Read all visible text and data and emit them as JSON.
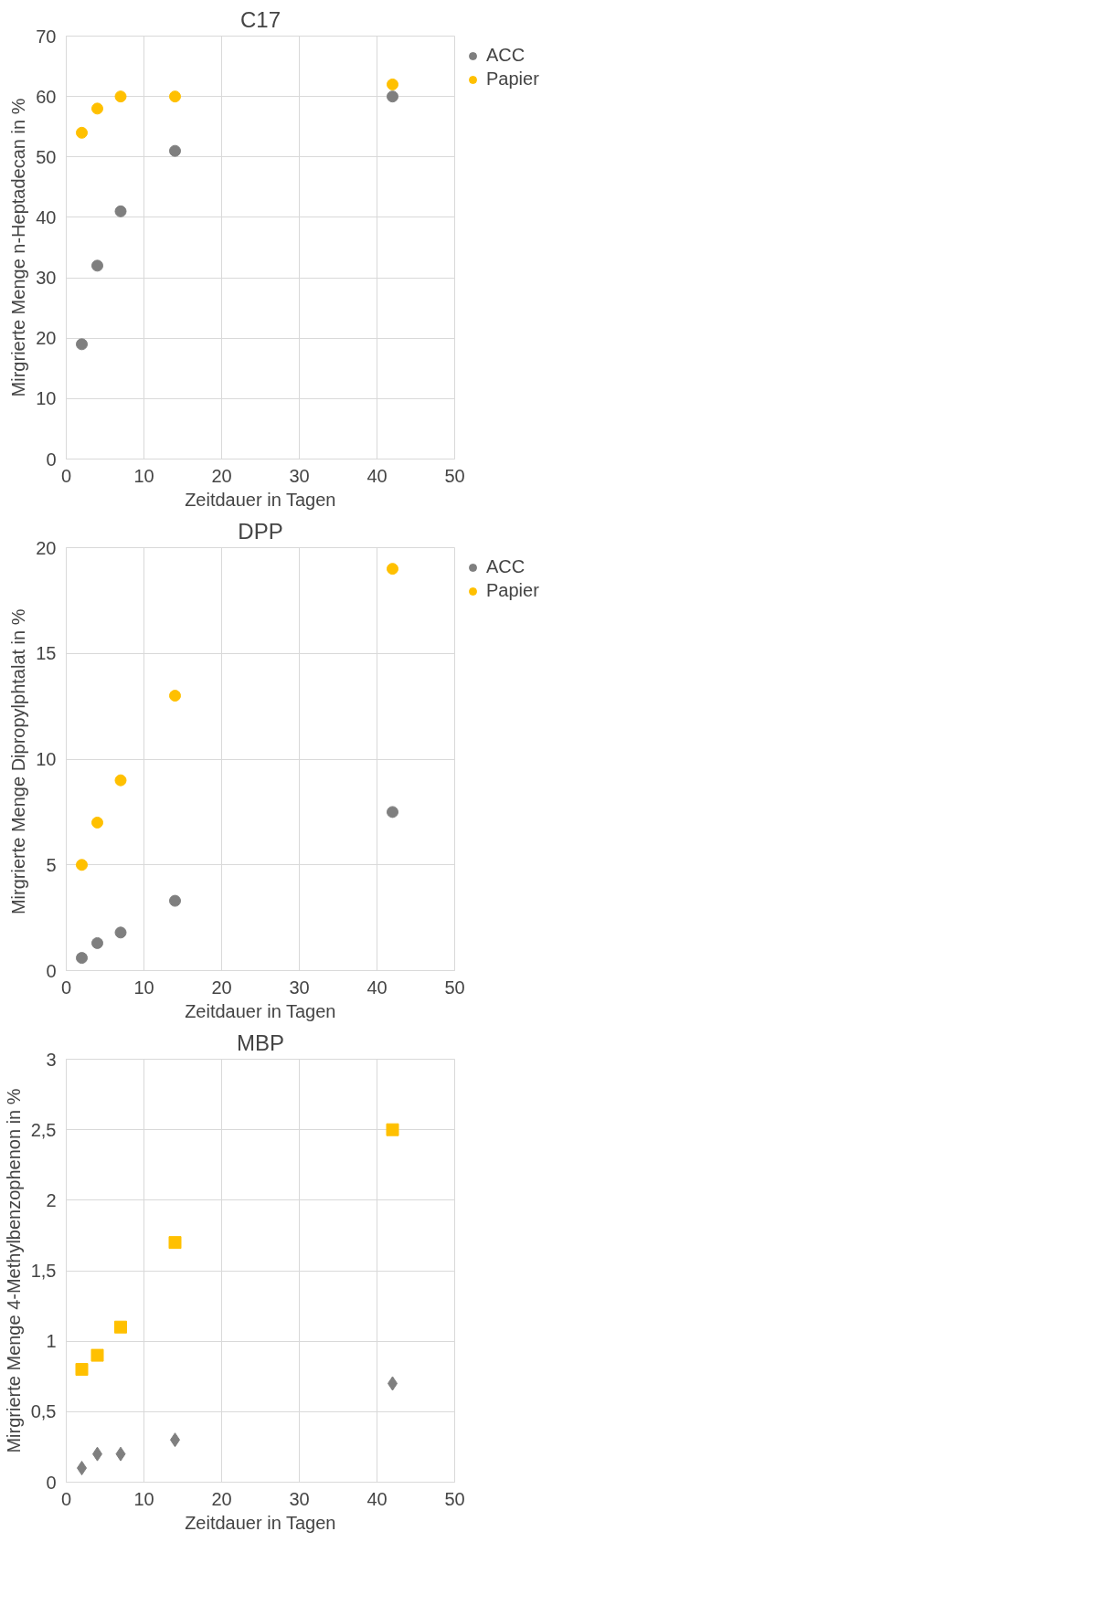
{
  "chart_data": [
    {
      "type": "scatter",
      "title": "C17",
      "xlabel": "Zeitdauer in Tagen",
      "ylabel": "Mirgrierte Menge n-Heptadecan in %",
      "x": [
        2,
        4,
        7,
        14,
        42
      ],
      "marker": "circle",
      "legend": "top right",
      "grid": true,
      "xlim": [
        0,
        50
      ],
      "xticks": [
        0,
        10,
        20,
        30,
        40,
        50
      ],
      "ylim": [
        0,
        70
      ],
      "yticks": [
        0,
        10,
        20,
        30,
        40,
        50,
        60,
        70
      ],
      "series": [
        {
          "name": "ACC",
          "color": "#7f7f7f",
          "values": [
            19,
            32,
            41,
            51,
            60
          ]
        },
        {
          "name": "Papier",
          "color": "#ffc000",
          "values": [
            54,
            58,
            60,
            60,
            62
          ]
        }
      ]
    },
    {
      "type": "scatter",
      "title": "DPP",
      "xlabel": "Zeitdauer in Tagen",
      "ylabel": "Mirgrierte Menge Dipropylphtalat  in %",
      "x": [
        2,
        4,
        7,
        14,
        42
      ],
      "marker": "circle",
      "legend": "top right",
      "grid": true,
      "xlim": [
        0,
        50
      ],
      "xticks": [
        0,
        10,
        20,
        30,
        40,
        50
      ],
      "ylim": [
        0,
        20
      ],
      "yticks": [
        0,
        5,
        10,
        15,
        20
      ],
      "series": [
        {
          "name": "ACC",
          "color": "#7f7f7f",
          "values": [
            0.6,
            1.3,
            1.8,
            3.3,
            7.5
          ]
        },
        {
          "name": "Papier",
          "color": "#ffc000",
          "values": [
            5,
            7,
            9,
            13,
            19
          ]
        }
      ]
    },
    {
      "type": "scatter",
      "title": "MBP",
      "xlabel": "Zeitdauer in Tagen",
      "ylabel": "Mirgrierte Menge 4-Methylbenzophenon in %",
      "x": [
        2,
        4,
        7,
        14,
        42
      ],
      "grid": true,
      "xlim": [
        0,
        50
      ],
      "xticks": [
        0,
        10,
        20,
        30,
        40,
        50
      ],
      "ylim": [
        0,
        3
      ],
      "yticks": [
        0,
        {
          "value": 0.5,
          "label": "0,5"
        },
        1,
        {
          "value": 1.5,
          "label": "1,5"
        },
        2,
        {
          "value": 2.5,
          "label": "2,5"
        },
        3
      ],
      "series": [
        {
          "color": "#7f7f7f",
          "marker": "diamond",
          "values": [
            0.1,
            0.2,
            0.2,
            0.3,
            0.7
          ]
        },
        {
          "color": "#ffc000",
          "marker": "square",
          "values": [
            0.8,
            0.9,
            1.1,
            1.7,
            2.5
          ]
        }
      ]
    }
  ]
}
